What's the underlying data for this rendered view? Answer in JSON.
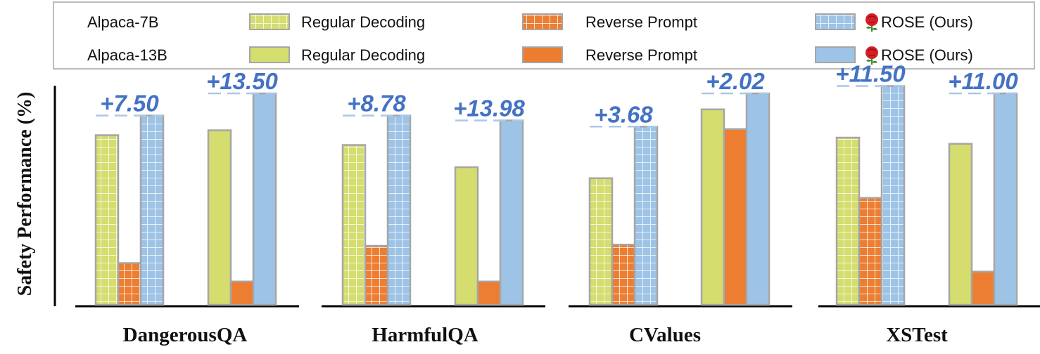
{
  "chart_data": {
    "type": "bar",
    "ylabel": "Safety Performance (%)",
    "legend": {
      "placement": "top",
      "rows": [
        {
          "model": "Alpaca-7B",
          "entries": [
            {
              "label": "Regular Decoding",
              "series": "7b_regular"
            },
            {
              "label": "Reverse Prompt",
              "series": "7b_reverse"
            },
            {
              "label": "ROSE (Ours)",
              "series": "7b_rose"
            }
          ]
        },
        {
          "model": "Alpaca-13B",
          "entries": [
            {
              "label": "Regular Decoding",
              "series": "13b_regular"
            },
            {
              "label": "Reverse Prompt",
              "series": "13b_reverse"
            },
            {
              "label": "ROSE (Ours)",
              "series": "13b_rose"
            }
          ]
        }
      ]
    },
    "series_styles": {
      "7b_regular": {
        "color": "#d4dd6e",
        "pattern": "grid"
      },
      "7b_reverse": {
        "color": "#ed7d31",
        "pattern": "grid"
      },
      "7b_rose": {
        "color": "#9dc3e6",
        "pattern": "grid"
      },
      "13b_regular": {
        "color": "#d4dd6e",
        "pattern": "solid"
      },
      "13b_reverse": {
        "color": "#ed7d31",
        "pattern": "solid"
      },
      "13b_rose": {
        "color": "#9dc3e6",
        "pattern": "solid"
      }
    },
    "colors": {
      "delta": "#4472c4",
      "dash": "#a9c8ea",
      "bar_border": "#a6a6a6",
      "axis": "#000000"
    },
    "ylim": [
      0,
      100
    ],
    "groups": [
      {
        "name": "DangerousQA",
        "clusters": [
          {
            "model": "Alpaca-7B",
            "values": {
              "regular": 69,
              "reverse": 17,
              "rose": 77
            },
            "delta": "+7.50"
          },
          {
            "model": "Alpaca-13B",
            "values": {
              "regular": 71,
              "reverse": 9.5,
              "rose": 86
            },
            "delta": "+13.50"
          }
        ]
      },
      {
        "name": "HarmfulQA",
        "clusters": [
          {
            "model": "Alpaca-7B",
            "values": {
              "regular": 65,
              "reverse": 24,
              "rose": 77
            },
            "delta": "+8.78"
          },
          {
            "model": "Alpaca-13B",
            "values": {
              "regular": 56,
              "reverse": 9.5,
              "rose": 75
            },
            "delta": "+13.98"
          }
        ]
      },
      {
        "name": "CValues",
        "clusters": [
          {
            "model": "Alpaca-7B",
            "values": {
              "regular": 51.5,
              "reverse": 24.5,
              "rose": 72.5
            },
            "delta": "+3.68"
          },
          {
            "model": "Alpaca-13B",
            "values": {
              "regular": 79.5,
              "reverse": 71.5,
              "rose": 86
            },
            "delta": "+2.02"
          }
        ]
      },
      {
        "name": "XSTest",
        "clusters": [
          {
            "model": "Alpaca-7B",
            "values": {
              "regular": 68,
              "reverse": 43.5,
              "rose": 89
            },
            "delta": "+11.50"
          },
          {
            "model": "Alpaca-13B",
            "values": {
              "regular": 65.5,
              "reverse": 13.5,
              "rose": 86
            },
            "delta": "+11.00"
          }
        ]
      }
    ]
  }
}
